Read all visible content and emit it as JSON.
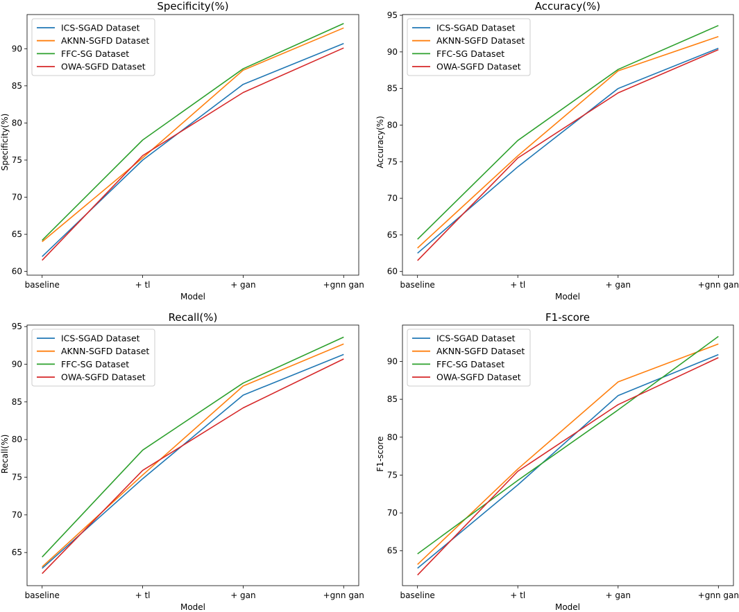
{
  "colors": {
    "ICS-SGAD Dataset": "#1f77b4",
    "AKNN-SGFD Dataset": "#ff7f0e",
    "FFC-SG Dataset": "#2ca02c",
    "OWA-SGFD Dataset": "#d62728"
  },
  "chart_data": [
    {
      "type": "line",
      "title": "Specificity(%)",
      "xlabel": "Model",
      "ylabel": "Specificity(%)",
      "categories": [
        "baseline",
        "+ tl",
        "+ gan",
        "+gnn gan"
      ],
      "ylim": [
        59.5,
        94.6
      ],
      "yticks": [
        60,
        65,
        70,
        75,
        80,
        85,
        90
      ],
      "legend": "top-left",
      "series": [
        {
          "name": "ICS-SGAD Dataset",
          "values": [
            62.0,
            75.0,
            85.2,
            90.7
          ]
        },
        {
          "name": "AKNN-SGFD Dataset",
          "values": [
            64.0,
            75.3,
            87.1,
            92.8
          ]
        },
        {
          "name": "FFC-SG Dataset",
          "values": [
            64.2,
            77.7,
            87.3,
            93.4
          ]
        },
        {
          "name": "OWA-SGFD Dataset",
          "values": [
            61.5,
            75.6,
            84.1,
            90.1
          ]
        }
      ]
    },
    {
      "type": "line",
      "title": "Accuracy(%)",
      "xlabel": "Model",
      "ylabel": "Accuracy(%)",
      "categories": [
        "baseline",
        "+ tl",
        "+ gan",
        "+gnn gan"
      ],
      "ylim": [
        59.5,
        95.1
      ],
      "yticks": [
        60,
        65,
        70,
        75,
        80,
        85,
        90,
        95
      ],
      "legend": "top-left",
      "series": [
        {
          "name": "ICS-SGAD Dataset",
          "values": [
            62.5,
            74.3,
            85.0,
            90.5
          ]
        },
        {
          "name": "AKNN-SGFD Dataset",
          "values": [
            63.2,
            75.8,
            87.4,
            92.1
          ]
        },
        {
          "name": "FFC-SG Dataset",
          "values": [
            64.4,
            77.9,
            87.6,
            93.6
          ]
        },
        {
          "name": "OWA-SGFD Dataset",
          "values": [
            61.5,
            75.5,
            84.4,
            90.3
          ]
        }
      ]
    },
    {
      "type": "line",
      "title": "Recall(%)",
      "xlabel": "Model",
      "ylabel": "Recall(%)",
      "categories": [
        "baseline",
        "+ tl",
        "+ gan",
        "+gnn gan"
      ],
      "ylim": [
        60.6,
        95.2
      ],
      "yticks": [
        65,
        70,
        75,
        80,
        85,
        90,
        95
      ],
      "legend": "top-left",
      "series": [
        {
          "name": "ICS-SGAD Dataset",
          "values": [
            62.9,
            74.8,
            85.9,
            91.3
          ]
        },
        {
          "name": "AKNN-SGFD Dataset",
          "values": [
            63.1,
            75.3,
            87.1,
            92.7
          ]
        },
        {
          "name": "FFC-SG Dataset",
          "values": [
            64.4,
            78.6,
            87.5,
            93.6
          ]
        },
        {
          "name": "OWA-SGFD Dataset",
          "values": [
            62.2,
            75.9,
            84.2,
            90.7
          ]
        }
      ]
    },
    {
      "type": "line",
      "title": "F1-score",
      "xlabel": "Model",
      "ylabel": "F1-score",
      "categories": [
        "baseline",
        "+ tl",
        "+ gan",
        "+gnn gan"
      ],
      "ylim": [
        60.4,
        94.8
      ],
      "yticks": [
        65,
        70,
        75,
        80,
        85,
        90
      ],
      "legend": "top-left",
      "series": [
        {
          "name": "ICS-SGAD Dataset",
          "values": [
            62.7,
            73.7,
            85.5,
            90.9
          ]
        },
        {
          "name": "AKNN-SGFD Dataset",
          "values": [
            63.2,
            75.8,
            87.3,
            92.3
          ]
        },
        {
          "name": "FFC-SG Dataset",
          "values": [
            64.6,
            74.3,
            83.6,
            93.3
          ]
        },
        {
          "name": "OWA-SGFD Dataset",
          "values": [
            61.8,
            75.5,
            84.3,
            90.5
          ]
        }
      ]
    }
  ]
}
